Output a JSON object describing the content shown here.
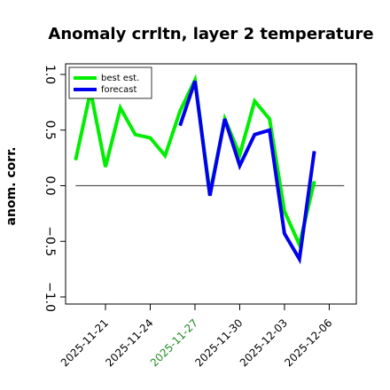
{
  "chart_data": {
    "type": "line",
    "title": "Anomaly crrltn, layer 2 temperature",
    "xlabel": "",
    "ylabel": "anom. corr.",
    "ylim": [
      -1.0,
      1.0
    ],
    "yticks": [
      "−1.0",
      "−0.5",
      "0.0",
      "0.5",
      "1.0"
    ],
    "ytick_values": [
      -1.0,
      -0.5,
      0.0,
      0.5,
      1.0
    ],
    "x_range": [
      0,
      26
    ],
    "xticks": [
      {
        "label": "2025-11-21",
        "x": 3,
        "color": "#000000"
      },
      {
        "label": "2025-11-24",
        "x": 6,
        "color": "#000000"
      },
      {
        "label": "2025-11-27",
        "x": 9,
        "color": "#228B22"
      },
      {
        "label": "2025-11-30",
        "x": 12,
        "color": "#000000"
      },
      {
        "label": "2025-12-03",
        "x": 15,
        "color": "#000000"
      },
      {
        "label": "2025-12-06",
        "x": 18,
        "color": "#000000"
      }
    ],
    "zero_line": 0.0,
    "grid": false,
    "legend_position": "top-left",
    "series": [
      {
        "name": "best est.",
        "color": "#00EE00",
        "x": [
          1,
          2,
          3,
          4,
          5,
          6,
          7,
          8,
          9,
          10,
          11,
          12,
          13,
          14,
          15,
          16,
          17,
          18
        ],
        "values": [
          0.23,
          0.85,
          0.17,
          0.7,
          0.46,
          0.43,
          0.27,
          0.67,
          0.95,
          -0.07,
          0.6,
          0.28,
          0.76,
          0.6,
          -0.23,
          -0.53,
          0.04,
          null
        ]
      },
      {
        "name": "forecast",
        "color": "#0000EE",
        "x": [
          8,
          9,
          10,
          11,
          12,
          13,
          14,
          15,
          16,
          17
        ],
        "values": [
          0.54,
          0.94,
          -0.09,
          0.6,
          0.18,
          0.46,
          0.5,
          -0.43,
          -0.66,
          0.31
        ]
      }
    ]
  }
}
